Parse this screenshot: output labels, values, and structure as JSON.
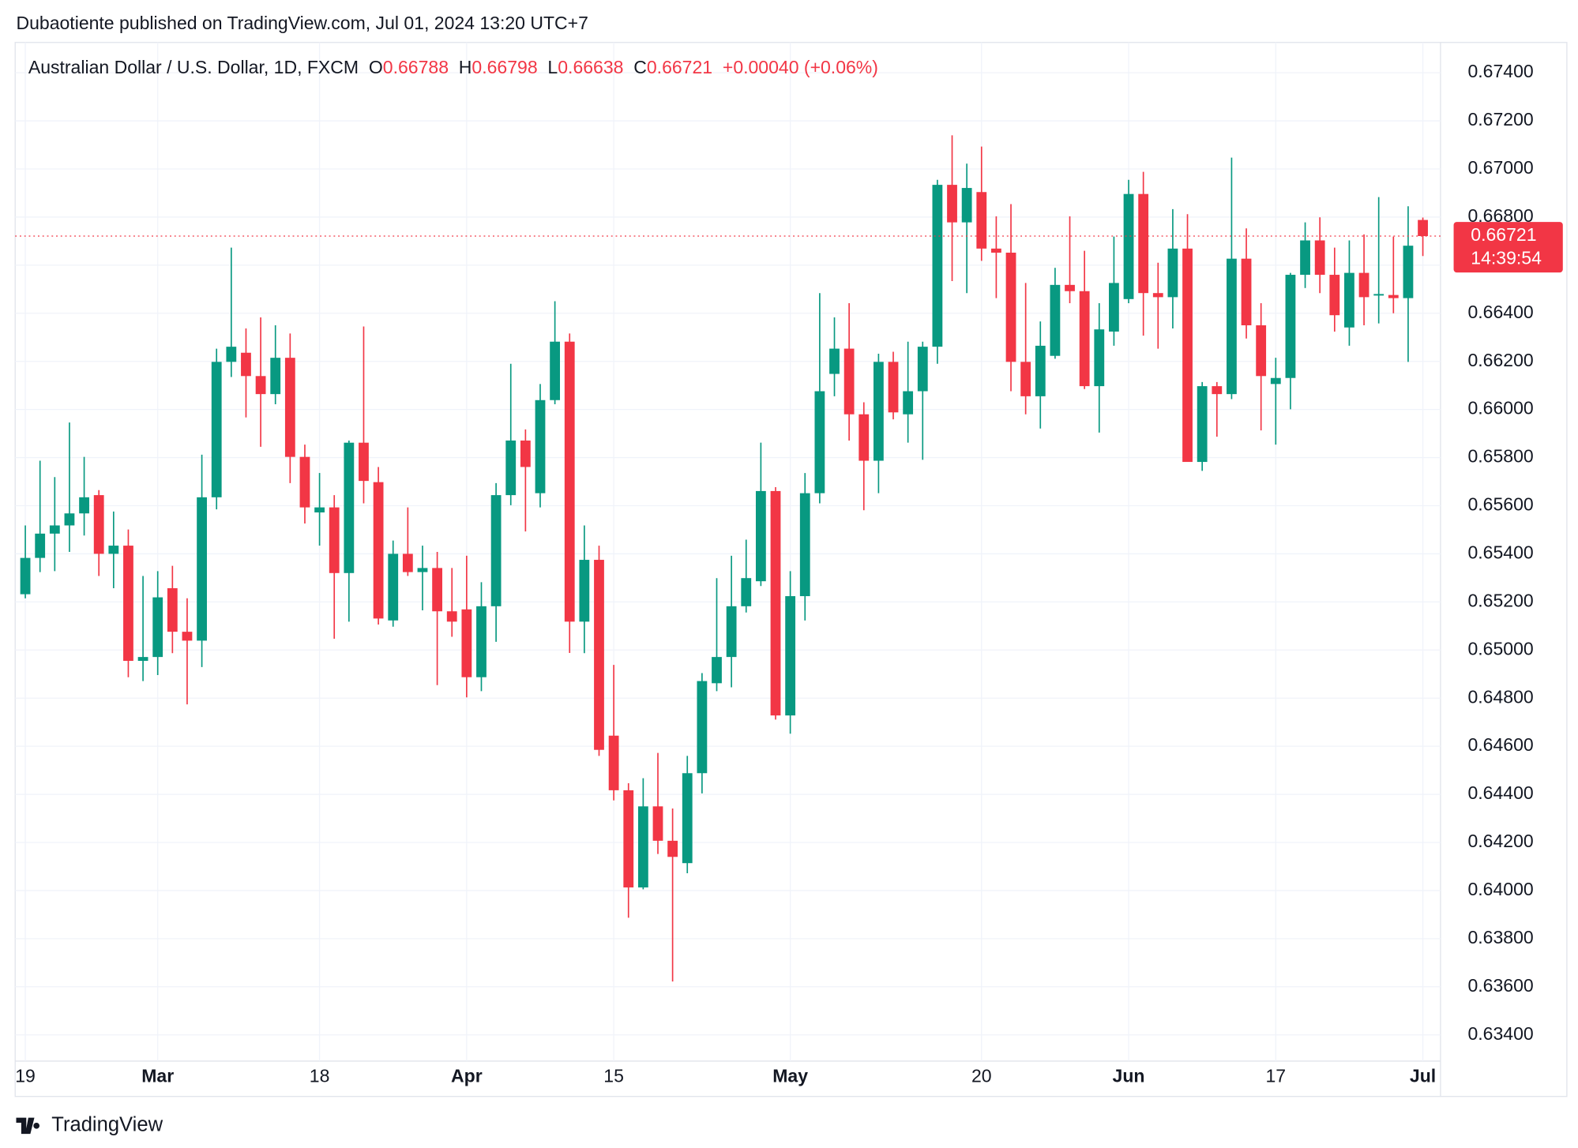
{
  "header": {
    "attribution": "Dubaotiente published on TradingView.com, Jul 01, 2024 13:20 UTC+7",
    "brand": "TradingView"
  },
  "chart_data": {
    "type": "candlestick",
    "symbol": "Australian Dollar / U.S. Dollar, 1D, FXCM",
    "legend_keys": [
      "O",
      "H",
      "L",
      "C"
    ],
    "change": "+0.00040 (+0.06%)",
    "countdown": "14:39:54",
    "up_color": "#089981",
    "down_color": "#f23645",
    "open": [
      0.65232,
      0.65383,
      0.65484,
      0.65518,
      0.65568,
      0.65644,
      0.654,
      0.65434,
      0.64955,
      0.64971,
      0.65257,
      0.65076,
      0.65039,
      0.65635,
      0.66198,
      0.66236,
      0.66139,
      0.66064,
      0.66215,
      0.65803,
      0.65572,
      0.65593,
      0.6532,
      0.65862,
      0.65698,
      0.65123,
      0.654,
      0.65324,
      0.65341,
      0.65161,
      0.65169,
      0.64887,
      0.65182,
      0.65644,
      0.65871,
      0.65652,
      0.66039,
      0.66282,
      0.65118,
      0.65375,
      0.64644,
      0.64417,
      0.64013,
      0.6435,
      0.64207,
      0.64114,
      0.64488,
      0.64862,
      0.64971,
      0.65182,
      0.65286,
      0.65661,
      0.64728,
      0.65224,
      0.65652,
      0.66148,
      0.66253,
      0.6598,
      0.65787,
      0.66198,
      0.6598,
      0.66076,
      0.66261,
      0.66934,
      0.66778,
      0.66904,
      0.66669,
      0.66652,
      0.66198,
      0.66055,
      0.66223,
      0.66518,
      0.66492,
      0.66097,
      0.66324,
      0.66459,
      0.66896,
      0.66484,
      0.66467,
      0.66669,
      0.65782,
      0.66097,
      0.66064,
      0.66627,
      0.6635,
      0.66106,
      0.66131,
      0.6656,
      0.66703,
      0.6656,
      0.66341,
      0.66568,
      0.66476,
      0.66476,
      0.66463,
      0.66788
    ],
    "high": [
      0.65518,
      0.65787,
      0.65719,
      0.65946,
      0.65803,
      0.65665,
      0.65576,
      0.65501,
      0.65308,
      0.65328,
      0.6535,
      0.65215,
      0.65812,
      0.66253,
      0.66673,
      0.66337,
      0.66383,
      0.6635,
      0.66316,
      0.65854,
      0.65736,
      0.65644,
      0.65871,
      0.66345,
      0.65761,
      0.65455,
      0.65593,
      0.65434,
      0.65408,
      0.65341,
      0.65392,
      0.65282,
      0.65694,
      0.6619,
      0.65917,
      0.66106,
      0.6645,
      0.66316,
      0.65518,
      0.65434,
      0.64938,
      0.64446,
      0.64467,
      0.64572,
      0.64341,
      0.6456,
      0.64904,
      0.65299,
      0.65392,
      0.65459,
      0.65862,
      0.65677,
      0.65328,
      0.65736,
      0.66484,
      0.66383,
      0.66442,
      0.6603,
      0.66232,
      0.6624,
      0.66282,
      0.66282,
      0.66955,
      0.6714,
      0.67022,
      0.67093,
      0.66803,
      0.66854,
      0.66526,
      0.66366,
      0.66589,
      0.66803,
      0.6666,
      0.66442,
      0.66719,
      0.66955,
      0.66988,
      0.6661,
      0.66833,
      0.66812,
      0.66114,
      0.66114,
      0.67047,
      0.66753,
      0.66442,
      0.66215,
      0.66568,
      0.66778,
      0.66799,
      0.66673,
      0.66703,
      0.66728,
      0.66883,
      0.66719,
      0.66845,
      0.66798
    ],
    "low": [
      0.65215,
      0.65324,
      0.65328,
      0.65408,
      0.65476,
      0.65308,
      0.65257,
      0.64887,
      0.64871,
      0.64896,
      0.64987,
      0.64774,
      0.64929,
      0.65585,
      0.66135,
      0.65967,
      0.65845,
      0.66022,
      0.65694,
      0.65526,
      0.65434,
      0.65047,
      0.65118,
      0.6561,
      0.65106,
      0.65097,
      0.65308,
      0.65165,
      0.64854,
      0.65055,
      0.64803,
      0.64829,
      0.65034,
      0.65602,
      0.65493,
      0.65593,
      0.66022,
      0.64988,
      0.64987,
      0.6456,
      0.64375,
      0.63887,
      0.64005,
      0.64152,
      0.63622,
      0.64072,
      0.64404,
      0.64829,
      0.64845,
      0.65156,
      0.65266,
      0.64711,
      0.64652,
      0.65123,
      0.6561,
      0.66055,
      0.65871,
      0.65581,
      0.65652,
      0.65959,
      0.65862,
      0.65791,
      0.6619,
      0.66534,
      0.66484,
      0.66618,
      0.66463,
      0.66076,
      0.6598,
      0.65921,
      0.66211,
      0.66442,
      0.66085,
      0.65904,
      0.66265,
      0.66442,
      0.66307,
      0.66253,
      0.66337,
      0.65782,
      0.65745,
      0.65887,
      0.66043,
      0.66295,
      0.65913,
      0.65854,
      0.66001,
      0.66505,
      0.66484,
      0.66324,
      0.66265,
      0.6635,
      0.66358,
      0.664,
      0.66198,
      0.66638
    ],
    "close": [
      0.65383,
      0.65484,
      0.65518,
      0.65568,
      0.65635,
      0.654,
      0.65434,
      0.64955,
      0.64971,
      0.65219,
      0.65076,
      0.65039,
      0.65635,
      0.66198,
      0.66261,
      0.66139,
      0.66064,
      0.66215,
      0.65803,
      0.65593,
      0.65593,
      0.6532,
      0.65862,
      0.65703,
      0.65131,
      0.654,
      0.65324,
      0.65341,
      0.65161,
      0.65118,
      0.64887,
      0.65182,
      0.65644,
      0.65871,
      0.65761,
      0.66039,
      0.66282,
      0.65118,
      0.65375,
      0.64585,
      0.64417,
      0.64013,
      0.6435,
      0.64207,
      0.6414,
      0.64488,
      0.64871,
      0.64971,
      0.65182,
      0.65299,
      0.65661,
      0.64728,
      0.65224,
      0.65652,
      0.66076,
      0.66253,
      0.6598,
      0.65787,
      0.66198,
      0.65988,
      0.66076,
      0.66261,
      0.66934,
      0.66778,
      0.66921,
      0.66669,
      0.66652,
      0.66198,
      0.66055,
      0.66265,
      0.66518,
      0.66492,
      0.66097,
      0.66333,
      0.66526,
      0.66896,
      0.66484,
      0.66467,
      0.66669,
      0.65782,
      0.66097,
      0.66064,
      0.66627,
      0.6635,
      0.66139,
      0.66131,
      0.6656,
      0.66703,
      0.6656,
      0.66392,
      0.66568,
      0.66467,
      0.6648,
      0.66463,
      0.66681,
      0.66721
    ],
    "ylim": [
      0.63291,
      0.67526
    ],
    "yticks": [
      {
        "value": 0.634,
        "label": "0.63400"
      },
      {
        "value": 0.636,
        "label": "0.63600"
      },
      {
        "value": 0.638,
        "label": "0.63800"
      },
      {
        "value": 0.64,
        "label": "0.64000"
      },
      {
        "value": 0.642,
        "label": "0.64200"
      },
      {
        "value": 0.644,
        "label": "0.64400"
      },
      {
        "value": 0.646,
        "label": "0.64600"
      },
      {
        "value": 0.648,
        "label": "0.64800"
      },
      {
        "value": 0.65,
        "label": "0.65000"
      },
      {
        "value": 0.652,
        "label": "0.65200"
      },
      {
        "value": 0.654,
        "label": "0.65400"
      },
      {
        "value": 0.656,
        "label": "0.65600"
      },
      {
        "value": 0.658,
        "label": "0.65800"
      },
      {
        "value": 0.66,
        "label": "0.66000"
      },
      {
        "value": 0.662,
        "label": "0.66200"
      },
      {
        "value": 0.664,
        "label": "0.66400"
      },
      {
        "value": 0.666,
        "label": "0.66600"
      },
      {
        "value": 0.668,
        "label": "0.66800"
      },
      {
        "value": 0.67,
        "label": "0.67000"
      },
      {
        "value": 0.672,
        "label": "0.67200"
      },
      {
        "value": 0.674,
        "label": "0.67400"
      }
    ],
    "xlim": [
      -0.69,
      96.2
    ],
    "xticks": [
      {
        "value": 0,
        "label": "19"
      },
      {
        "value": 9,
        "label": "Mar"
      },
      {
        "value": 20,
        "label": "18"
      },
      {
        "value": 30,
        "label": "Apr"
      },
      {
        "value": 40,
        "label": "15"
      },
      {
        "value": 52,
        "label": "May"
      },
      {
        "value": 65,
        "label": "20"
      },
      {
        "value": 75,
        "label": "Jun"
      },
      {
        "value": 85,
        "label": "17"
      },
      {
        "value": 95,
        "label": "Jul"
      }
    ],
    "grid": true
  }
}
